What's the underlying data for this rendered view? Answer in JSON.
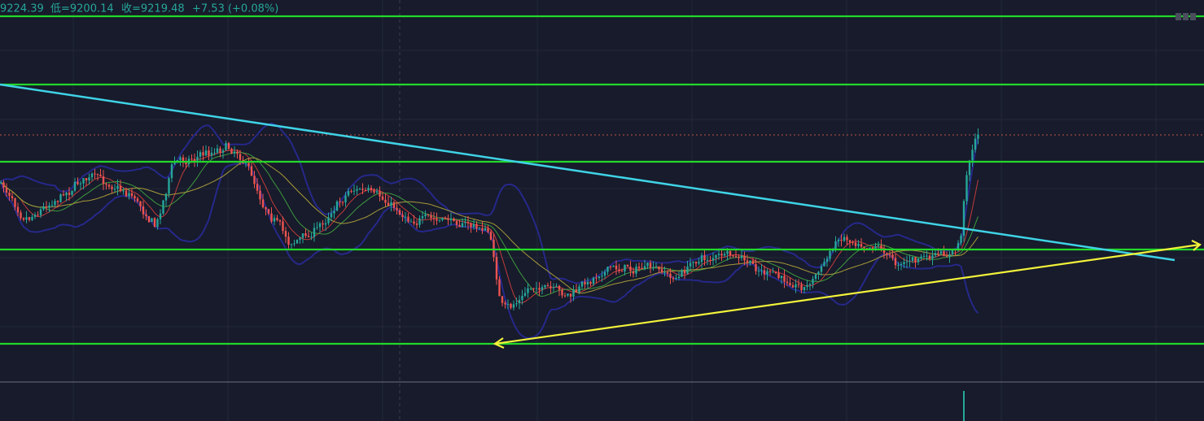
{
  "header": {
    "high": "9224.39",
    "low": "低=9200.14",
    "close": "收=9219.48",
    "change": "+7.53 (+0.08%)"
  }
}
